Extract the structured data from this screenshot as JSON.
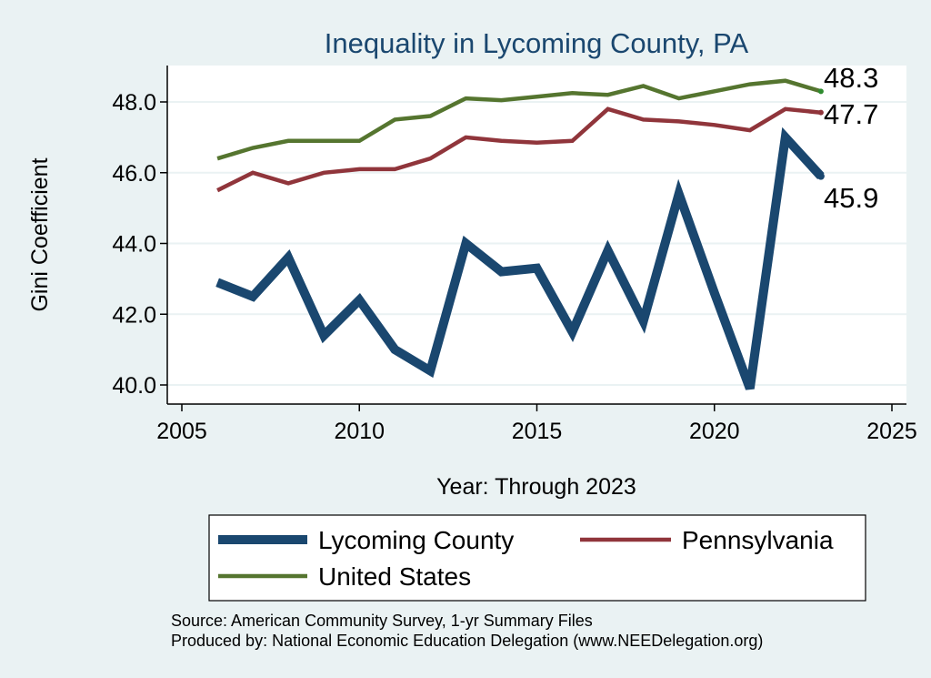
{
  "chart_data": {
    "type": "line",
    "title": "Inequality in Lycoming County, PA",
    "xlabel": "Year: Through 2023",
    "ylabel": "Gini Coefficient",
    "xlim": [
      2005,
      2025
    ],
    "ylim": [
      39.5,
      49.0
    ],
    "xticks": [
      2005,
      2010,
      2015,
      2020,
      2025
    ],
    "yticks": [
      40.0,
      42.0,
      44.0,
      46.0,
      48.0
    ],
    "ytick_labels": [
      "40.0",
      "42.0",
      "44.0",
      "46.0",
      "48.0"
    ],
    "grid": true,
    "legend_position": "bottom",
    "x": [
      2006,
      2007,
      2008,
      2009,
      2010,
      2011,
      2012,
      2013,
      2014,
      2015,
      2016,
      2017,
      2018,
      2019,
      2020,
      2021,
      2022,
      2023
    ],
    "series": [
      {
        "name": "Lycoming County",
        "color": "#1a476f",
        "values": [
          42.9,
          42.5,
          43.6,
          41.4,
          42.4,
          41.0,
          40.4,
          44.0,
          43.2,
          43.3,
          41.5,
          43.8,
          41.8,
          45.4,
          42.6,
          39.9,
          47.0,
          45.9
        ],
        "end_label": "45.9"
      },
      {
        "name": "Pennsylvania",
        "color": "#90353b",
        "values": [
          45.5,
          46.0,
          45.7,
          46.0,
          46.1,
          46.1,
          46.4,
          47.0,
          46.9,
          46.85,
          46.9,
          47.8,
          47.5,
          47.45,
          47.35,
          47.2,
          47.8,
          47.7
        ],
        "end_label": "47.7"
      },
      {
        "name": "United States",
        "color": "#55752f",
        "values": [
          46.4,
          46.7,
          46.9,
          46.9,
          46.9,
          47.5,
          47.6,
          48.1,
          48.05,
          48.15,
          48.25,
          48.2,
          48.45,
          48.1,
          48.3,
          48.5,
          48.6,
          48.3
        ],
        "end_label": "48.3"
      }
    ],
    "notes": [
      "Source: American Community Survey, 1-yr Summary Files",
      "Produced by: National Economic Education Delegation (www.NEEDelegation.org)"
    ]
  }
}
